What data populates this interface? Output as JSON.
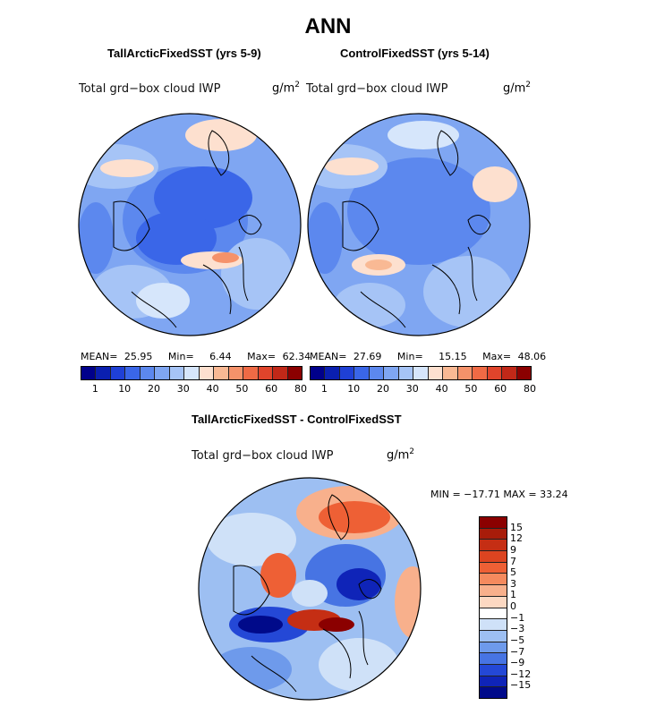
{
  "figure": {
    "main_title": "ANN",
    "panels": [
      {
        "title": "TallArcticFixedSST (yrs 5-9)",
        "variable": "Total grd−box cloud IWP",
        "units_base": "g/m",
        "units_exp": "2",
        "mean_label": "MEAN=",
        "mean": "25.95",
        "min_label": "Min=",
        "min": "6.44",
        "max_label": "Max=",
        "max": "62.34"
      },
      {
        "title": "ControlFixedSST (yrs 5-14)",
        "variable": "Total grd−box cloud IWP",
        "units_base": "g/m",
        "units_exp": "2",
        "mean_label": "MEAN=",
        "mean": "27.69",
        "min_label": "Min=",
        "min": "15.15",
        "max_label": "Max=",
        "max": "48.06"
      }
    ],
    "colorbar_ticks": [
      "1",
      "10",
      "20",
      "30",
      "40",
      "50",
      "60",
      "80"
    ],
    "colorbar_colors": [
      "#00008b",
      "#0a1fb0",
      "#1f40d6",
      "#3a66e8",
      "#5c88ee",
      "#7fa6f2",
      "#a6c4f6",
      "#d6e6fb",
      "#fde0cf",
      "#f9b994",
      "#f5926a",
      "#ef6a45",
      "#e0442b",
      "#c12818",
      "#8b0000"
    ],
    "difference": {
      "title": "TallArcticFixedSST - ControlFixedSST",
      "variable": "Total grd−box cloud IWP",
      "units_base": "g/m",
      "units_exp": "2",
      "minmax_label": "MIN = −17.71  MAX =  33.24",
      "ticks": [
        "15",
        "12",
        "9",
        "7",
        "5",
        "3",
        "1",
        "0",
        "−1",
        "−3",
        "−5",
        "−7",
        "−9",
        "−12",
        "−15"
      ],
      "colors": [
        "#8b0000",
        "#a81c0a",
        "#c52e14",
        "#dc4420",
        "#ee6035",
        "#f58a5e",
        "#f8b08c",
        "#fcd8c2",
        "#ffffff",
        "#cfe1f8",
        "#9dbff2",
        "#6e9aeb",
        "#4774e3",
        "#2448d6",
        "#0f24b8",
        "#000a8a"
      ]
    },
    "chart_data": [
      {
        "type": "map",
        "projection": "north-polar-stereographic",
        "title": "TallArcticFixedSST (yrs 5-9)",
        "field": "Total grd-box cloud IWP",
        "units": "g/m2",
        "mean": 25.95,
        "min": 6.44,
        "max": 62.34,
        "levels": [
          1,
          10,
          20,
          30,
          40,
          50,
          60,
          80
        ]
      },
      {
        "type": "map",
        "projection": "north-polar-stereographic",
        "title": "ControlFixedSST (yrs 5-14)",
        "field": "Total grd-box cloud IWP",
        "units": "g/m2",
        "mean": 27.69,
        "min": 15.15,
        "max": 48.06,
        "levels": [
          1,
          10,
          20,
          30,
          40,
          50,
          60,
          80
        ]
      },
      {
        "type": "map",
        "projection": "north-polar-stereographic",
        "title": "TallArcticFixedSST - ControlFixedSST",
        "field": "Total grd-box cloud IWP",
        "units": "g/m2",
        "min": -17.71,
        "max": 33.24,
        "levels": [
          -15,
          -12,
          -9,
          -7,
          -5,
          -3,
          -1,
          0,
          1,
          3,
          5,
          7,
          9,
          12,
          15
        ]
      }
    ]
  }
}
